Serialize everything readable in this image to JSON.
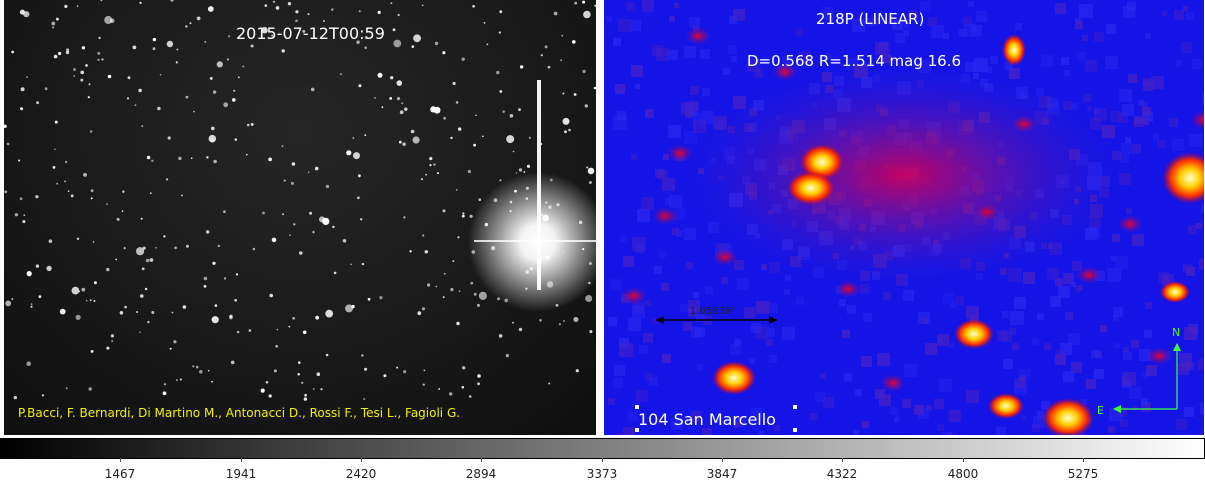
{
  "left_panel": {
    "timestamp": "2015-07-12T00:59",
    "credits": "P.Bacci, F. Bernardi, Di Martino M., Antonacci D., Rossi F., Tesi L., Fagioli G."
  },
  "right_panel": {
    "object": "218P (LINEAR)",
    "params": "D=0.568  R=1.514 mag 16.6",
    "scale_label": "1.05636'",
    "observatory": "104 San Marcello",
    "compass_north": "N",
    "compass_east": "E"
  },
  "colorbar": {
    "ticks": [
      "1467",
      "1941",
      "2420",
      "2894",
      "3373",
      "3847",
      "4322",
      "4800",
      "5275"
    ]
  },
  "colors": {
    "left_bg": "#1a1a1a",
    "right_bg": "#1414e6",
    "credits": "#f2f200",
    "compass": "#3cff3c"
  }
}
